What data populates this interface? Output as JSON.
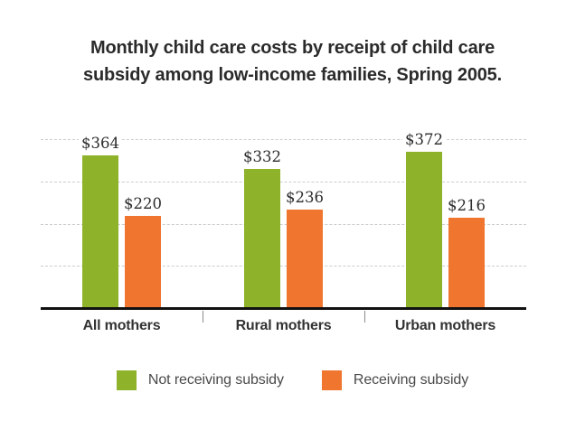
{
  "title": {
    "lines": [
      "Monthly child care costs by receipt of child care",
      "subsidy among low-income families, Spring 2005."
    ]
  },
  "chart_data": {
    "type": "bar",
    "categories": [
      "All mothers",
      "Rural mothers",
      "Urban mothers"
    ],
    "series": [
      {
        "name": "Not receiving subsidy",
        "color": "#8EB22A",
        "values": [
          364,
          332,
          372
        ]
      },
      {
        "name": "Receiving subsidy",
        "color": "#F0752F",
        "values": [
          220,
          236,
          216
        ]
      }
    ],
    "data_labels": [
      [
        "$364",
        "$332",
        "$372"
      ],
      [
        "$220",
        "$236",
        "$216"
      ]
    ],
    "value_prefix": "$",
    "ylim": [
      0,
      400
    ],
    "gridline_step": 100,
    "grid": "horizontal-dashed",
    "gridline_color": "#cccccc",
    "axis_color": "#111111",
    "legend_position": "bottom",
    "xlabel": "",
    "ylabel": ""
  }
}
